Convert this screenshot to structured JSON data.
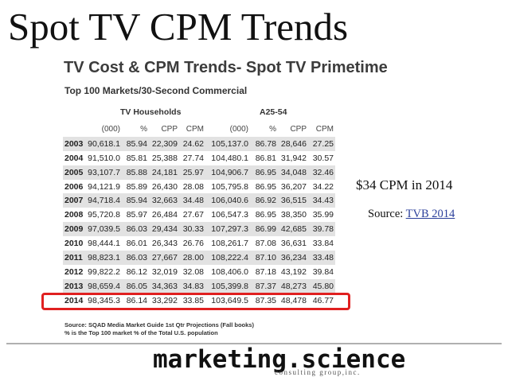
{
  "slide": {
    "title": "Spot TV CPM Trends"
  },
  "panel": {
    "title": "TV Cost & CPM Trends- Spot TV Primetime",
    "subtitle": "Top 100 Markets/30-Second Commercial",
    "group_households": "TV Households",
    "group_a25": "A25-54",
    "columns": [
      "",
      "(000)",
      "%",
      "CPP",
      "CPM",
      "(000)",
      "%",
      "CPP",
      "CPM"
    ],
    "rows": [
      [
        "2003",
        "90,618.1",
        "85.94",
        "22,309",
        "24.62",
        "105,137.0",
        "86.78",
        "28,646",
        "27.25"
      ],
      [
        "2004",
        "91,510.0",
        "85.81",
        "25,388",
        "27.74",
        "104,480.1",
        "86.81",
        "31,942",
        "30.57"
      ],
      [
        "2005",
        "93,107.7",
        "85.88",
        "24,181",
        "25.97",
        "104,906.7",
        "86.95",
        "34,048",
        "32.46"
      ],
      [
        "2006",
        "94,121.9",
        "85.89",
        "26,430",
        "28.08",
        "105,795.8",
        "86.95",
        "36,207",
        "34.22"
      ],
      [
        "2007",
        "94,718.4",
        "85.94",
        "32,663",
        "34.48",
        "106,040.6",
        "86.92",
        "36,515",
        "34.43"
      ],
      [
        "2008",
        "95,720.8",
        "85.97",
        "26,484",
        "27.67",
        "106,547.3",
        "86.95",
        "38,350",
        "35.99"
      ],
      [
        "2009",
        "97,039.5",
        "86.03",
        "29,434",
        "30.33",
        "107,297.3",
        "86.99",
        "42,685",
        "39.78"
      ],
      [
        "2010",
        "98,444.1",
        "86.01",
        "26,343",
        "26.76",
        "108,261.7",
        "87.08",
        "36,631",
        "33.84"
      ],
      [
        "2011",
        "98,823.1",
        "86.03",
        "27,667",
        "28.00",
        "108,222.4",
        "87.10",
        "36,234",
        "33.48"
      ],
      [
        "2012",
        "99,822.2",
        "86.12",
        "32,019",
        "32.08",
        "108,406.0",
        "87.18",
        "43,192",
        "39.84"
      ],
      [
        "2013",
        "98,659.4",
        "86.05",
        "34,363",
        "34.83",
        "105,399.8",
        "87.37",
        "48,273",
        "45.80"
      ],
      [
        "2014",
        "98,345.3",
        "86.14",
        "33,292",
        "33.85",
        "103,649.5",
        "87.35",
        "48,478",
        "46.77"
      ]
    ],
    "footnote_1": "Source: SQAD Media Market Guide 1st Qtr Projections (Fall books)",
    "footnote_2": "% is the Top 100 market % of the Total U.S. population",
    "highlight_color": "#e02020"
  },
  "notes": {
    "cpm_2014": "$34 CPM in 2014",
    "source_prefix": "Source: ",
    "source_link": "TVB 2014"
  },
  "logo": {
    "main": "marketing.science",
    "tagline": "consulting group,inc."
  }
}
